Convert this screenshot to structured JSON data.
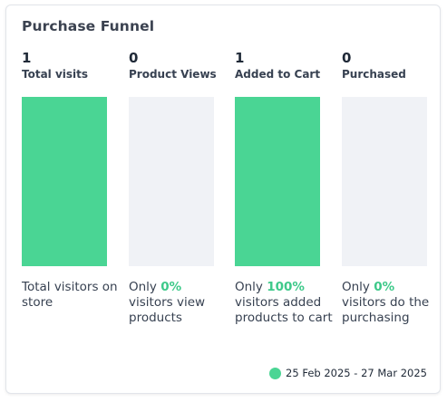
{
  "card": {
    "title": "Purchase Funnel"
  },
  "colors": {
    "bar": "#4ad594",
    "track": "#f0f2f6",
    "highlight": "#3ec98a"
  },
  "stages": [
    {
      "count": "1",
      "label": "Total visits",
      "fill_fraction": 1,
      "desc_prefix": "",
      "desc_pct": "",
      "desc_suffix": "Total visitors on store"
    },
    {
      "count": "0",
      "label": "Product Views",
      "fill_fraction": 0,
      "desc_prefix": "Only ",
      "desc_pct": "0%",
      "desc_suffix": " visitors view products"
    },
    {
      "count": "1",
      "label": "Added to Cart",
      "fill_fraction": 1,
      "desc_prefix": "Only ",
      "desc_pct": "100%",
      "desc_suffix": " visitors added products to cart"
    },
    {
      "count": "0",
      "label": "Purchased",
      "fill_fraction": 0,
      "desc_prefix": "Only ",
      "desc_pct": "0%",
      "desc_suffix": " visitors do the purchasing"
    }
  ],
  "legend": {
    "range_label": "25 Feb 2025 - 27 Mar 2025"
  }
}
